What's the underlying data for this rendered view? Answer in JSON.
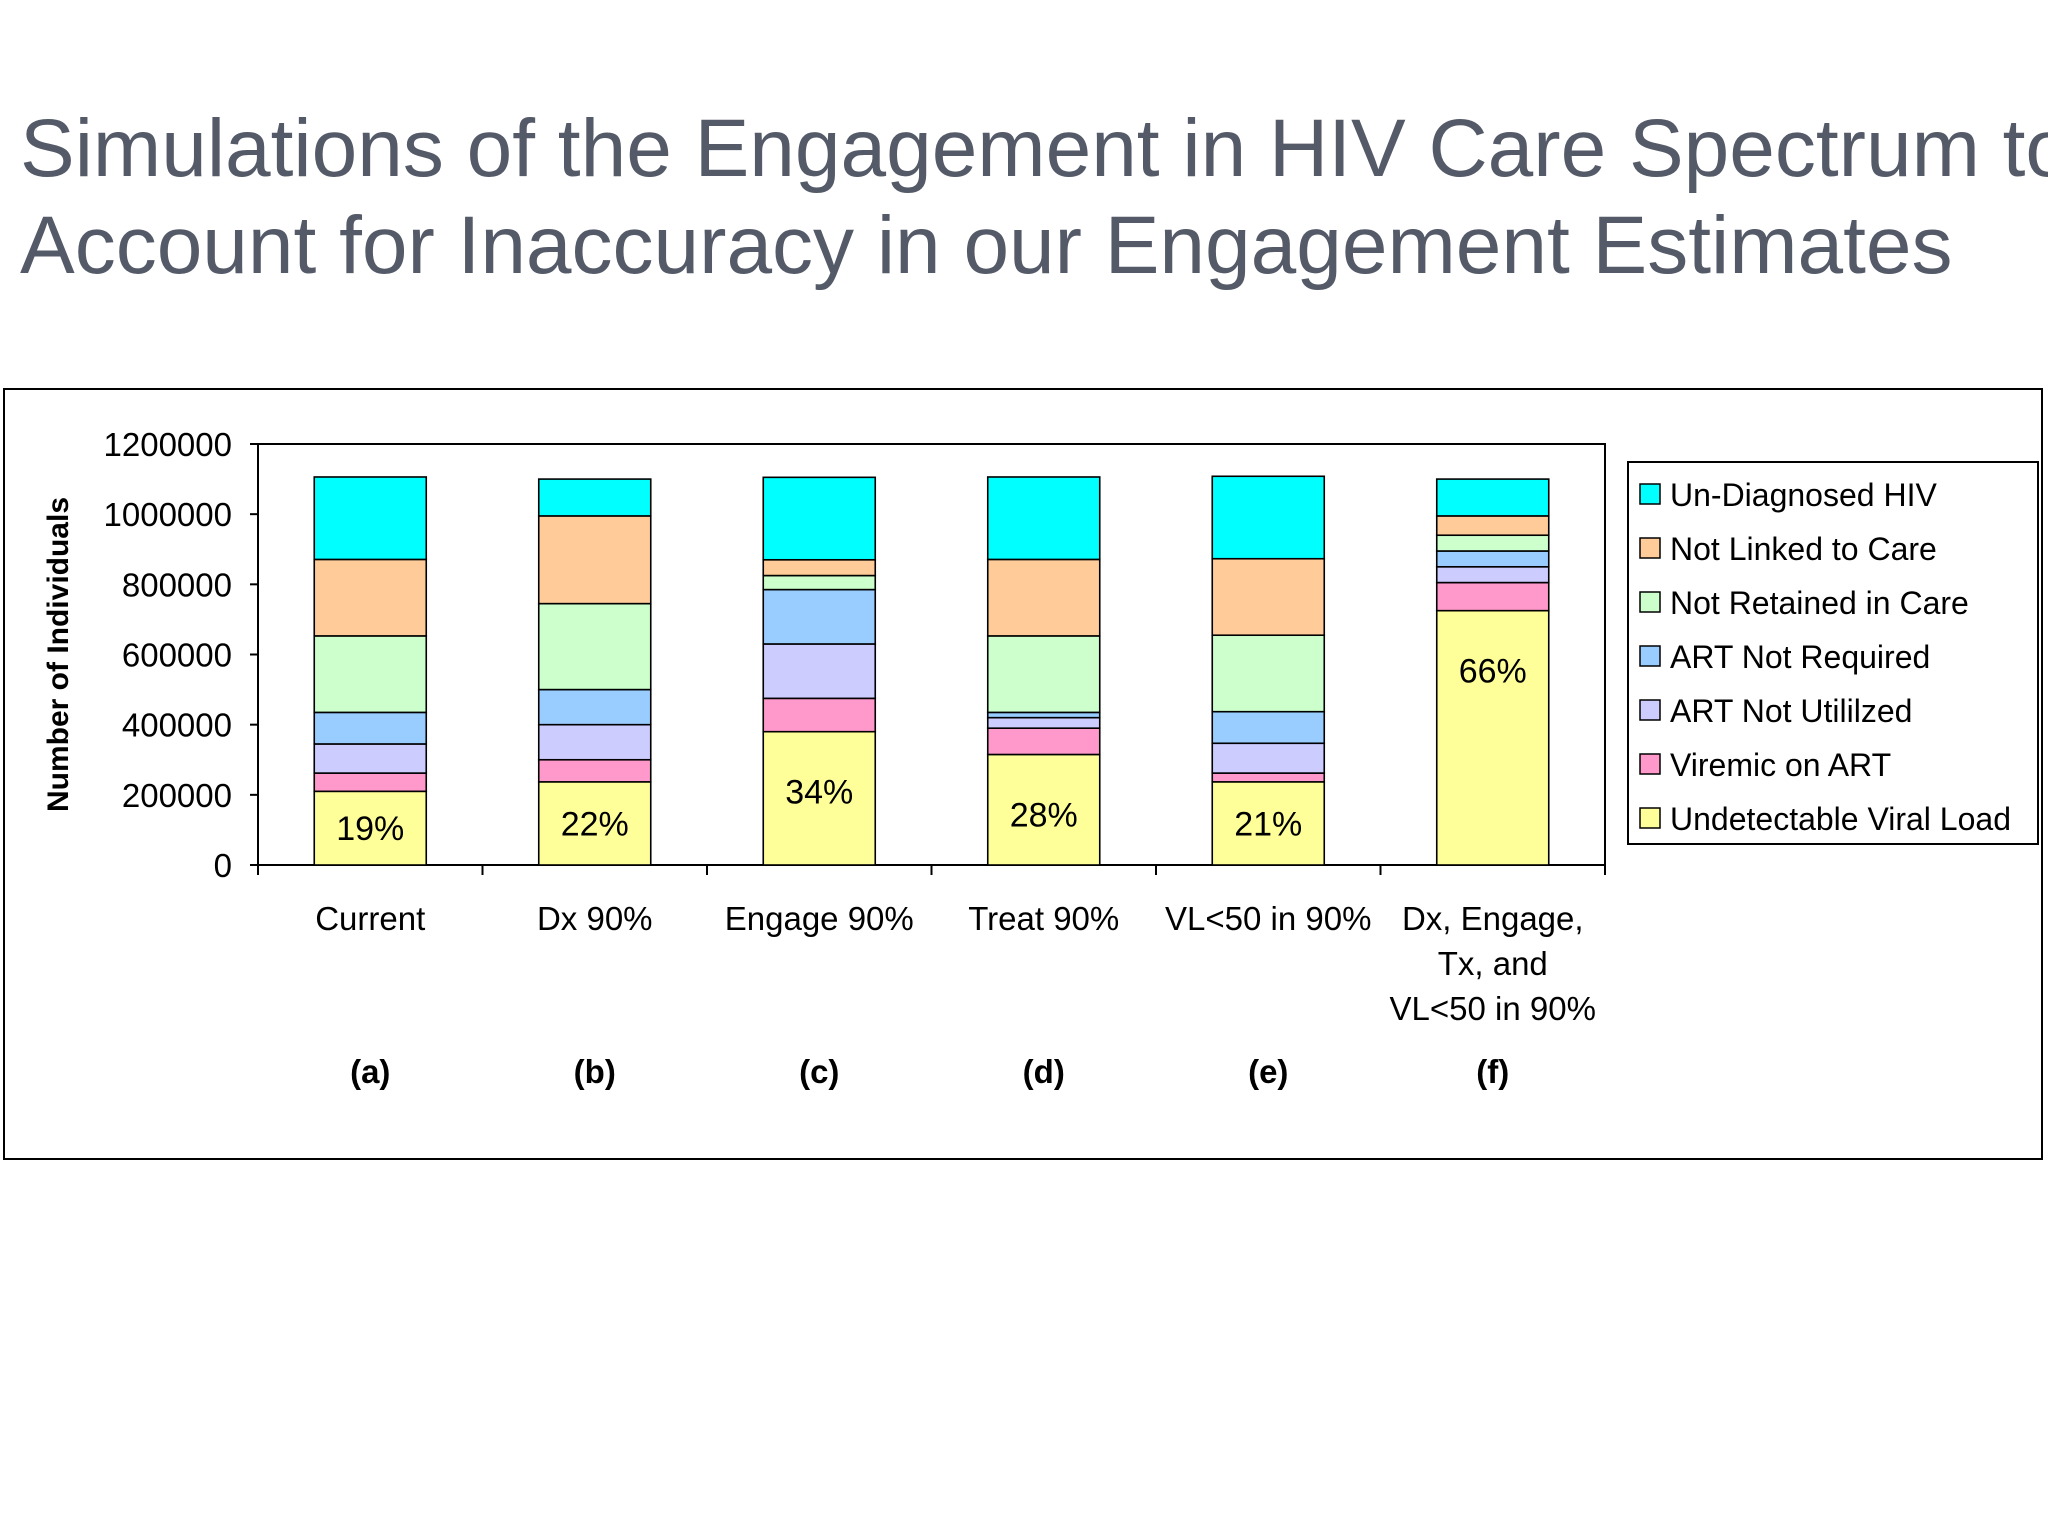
{
  "slide": {
    "title_line1": "Simulations of the Engagement in HIV Care Spectrum to",
    "title_line2": "Account for Inaccuracy in our Engagement Estimates"
  },
  "chart_data": {
    "type": "bar",
    "stacked": true,
    "title": "Simulations of the Engagement in HIV Care Spectrum to Account for Inaccuracy in our Engagement Estimates",
    "xlabel": "",
    "ylabel": "Number of Individuals",
    "ylim": [
      0,
      1200000
    ],
    "yticks": [
      0,
      200000,
      400000,
      600000,
      800000,
      1000000,
      1200000
    ],
    "grid": false,
    "legend_position": "right",
    "categories": [
      {
        "lines": [
          "Current"
        ],
        "letter": "(a)"
      },
      {
        "lines": [
          "Dx 90%"
        ],
        "letter": "(b)"
      },
      {
        "lines": [
          "Engage 90%"
        ],
        "letter": "(c)"
      },
      {
        "lines": [
          "Treat 90%"
        ],
        "letter": "(d)"
      },
      {
        "lines": [
          "VL<50 in 90%"
        ],
        "letter": "(e)"
      },
      {
        "lines": [
          "Dx, Engage,",
          "Tx, and",
          "VL<50 in 90%"
        ],
        "letter": "(f)"
      }
    ],
    "series": [
      {
        "name": "Undetectable Viral Load",
        "color": "#ffff99",
        "values": [
          210000,
          237000,
          380000,
          315000,
          237000,
          725000
        ]
      },
      {
        "name": "Viremic on ART",
        "color": "#ff99cc",
        "values": [
          52000,
          63000,
          95000,
          75000,
          25000,
          80000
        ]
      },
      {
        "name": "ART Not Utililzed",
        "color": "#ccccff",
        "values": [
          83000,
          100000,
          155000,
          30000,
          85000,
          45000
        ]
      },
      {
        "name": "ART Not Required",
        "color": "#99ccff",
        "values": [
          90000,
          100000,
          155000,
          15000,
          90000,
          45000
        ]
      },
      {
        "name": "Not Retained in Care",
        "color": "#ccffcc",
        "values": [
          218000,
          245000,
          40000,
          218000,
          218000,
          45000
        ]
      },
      {
        "name": "Not Linked to Care",
        "color": "#ffcc99",
        "values": [
          218000,
          250000,
          45000,
          218000,
          218000,
          55000
        ]
      },
      {
        "name": "Un-Diagnosed HIV",
        "color": "#00ffff",
        "values": [
          235000,
          105000,
          235000,
          235000,
          235000,
          105000
        ]
      }
    ],
    "data_labels": [
      "19%",
      "22%",
      "34%",
      "28%",
      "21%",
      "66%"
    ]
  }
}
